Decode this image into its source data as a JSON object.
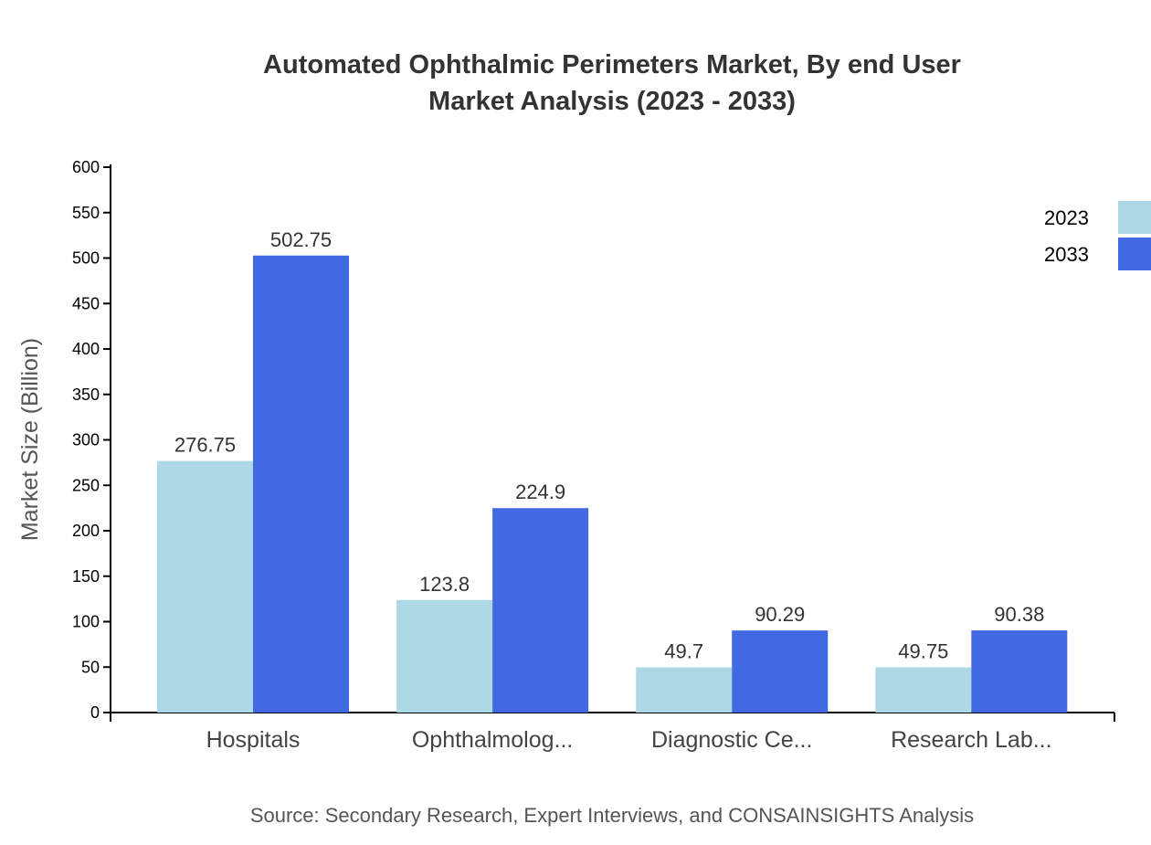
{
  "chart_data": {
    "type": "bar",
    "title": "Automated Ophthalmic Perimeters Market, By end User",
    "subtitle": "Market Analysis (2023 - 2033)",
    "xlabel": "",
    "ylabel": "Market Size (Billion)",
    "ylim": [
      0,
      600
    ],
    "yticks": [
      0,
      50,
      100,
      150,
      200,
      250,
      300,
      350,
      400,
      450,
      500,
      550,
      600
    ],
    "categories": [
      "Hospitals",
      "Ophthalmolog...",
      "Diagnostic Ce...",
      "Research Lab..."
    ],
    "series": [
      {
        "name": "2023",
        "color": "#ADD8E6",
        "values": [
          276.75,
          123.8,
          49.7,
          49.75
        ]
      },
      {
        "name": "2033",
        "color": "#4169E1",
        "values": [
          502.75,
          224.9,
          90.29,
          90.38
        ]
      }
    ],
    "grid": false,
    "legend": "top-right",
    "source": "Source: Secondary Research, Expert Interviews, and CONSAINSIGHTS Analysis"
  }
}
